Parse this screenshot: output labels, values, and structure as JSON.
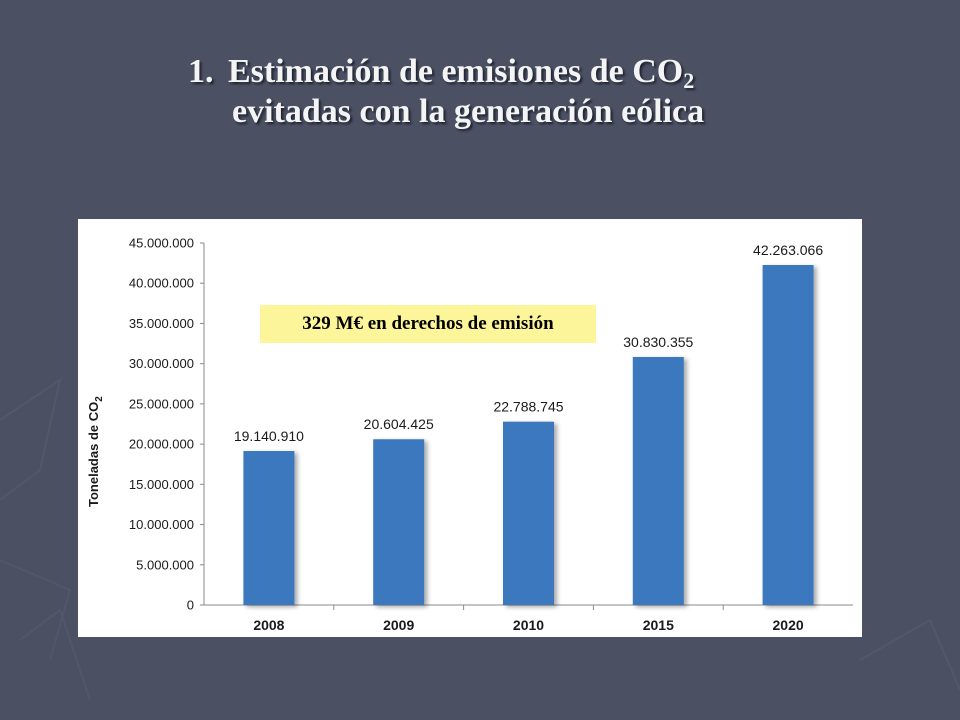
{
  "slide": {
    "title_number": "1.",
    "title_line1": "Estimación de emisiones de CO",
    "title_line1_sub": "2",
    "title_line2": "evitadas con la generación eólica",
    "callout": "329 M€ en derechos de emisión"
  },
  "chart_data": {
    "type": "bar",
    "categories": [
      "2008",
      "2009",
      "2010",
      "2015",
      "2020"
    ],
    "values": [
      19140910,
      20604425,
      22788745,
      30830355,
      42263066
    ],
    "data_labels": [
      "19.140.910",
      "20.604.425",
      "22.788.745",
      "30.830.355",
      "42.263.066"
    ],
    "ylabel": "Toneladas de CO",
    "ylabel_sub": "2",
    "ylim": [
      0,
      45000000
    ],
    "yticks": [
      0,
      5000000,
      10000000,
      15000000,
      20000000,
      25000000,
      30000000,
      35000000,
      40000000,
      45000000
    ],
    "ytick_labels": [
      "0",
      "5.000.000",
      "10.000.000",
      "15.000.000",
      "20.000.000",
      "25.000.000",
      "30.000.000",
      "35.000.000",
      "40.000.000",
      "45.000.000"
    ],
    "grid": false,
    "bar_color": "#3b78be"
  }
}
